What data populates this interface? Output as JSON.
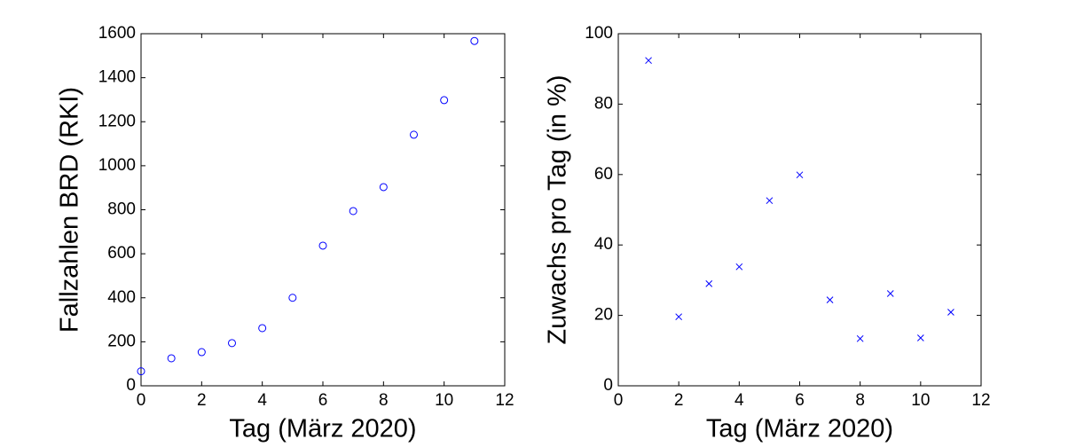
{
  "chart_data": [
    {
      "type": "scatter",
      "marker": "circle",
      "color": "#0000ff",
      "xlabel": "Tag (März 2020)",
      "ylabel": "Fallzahlen BRD (RKI)",
      "x": [
        0,
        1,
        2,
        3,
        4,
        5,
        6,
        7,
        8,
        9,
        10,
        11
      ],
      "values": [
        66,
        125,
        153,
        194,
        262,
        400,
        637,
        794,
        903,
        1141,
        1298,
        1567
      ],
      "xlim": [
        0,
        12
      ],
      "ylim": [
        0,
        1600
      ],
      "xticks": [
        0,
        2,
        4,
        6,
        8,
        10,
        12
      ],
      "yticks": [
        0,
        200,
        400,
        600,
        800,
        1000,
        1200,
        1400,
        1600
      ]
    },
    {
      "type": "scatter",
      "marker": "cross",
      "color": "#0000ff",
      "xlabel": "Tag (März 2020)",
      "ylabel": "Zuwachs pro Tag (in %)",
      "x": [
        1,
        2,
        3,
        4,
        5,
        6,
        7,
        8,
        9,
        10,
        11
      ],
      "values": [
        92.4,
        19.6,
        29.0,
        33.8,
        52.6,
        59.9,
        24.4,
        13.4,
        26.2,
        13.6,
        20.9
      ],
      "xlim": [
        0,
        12
      ],
      "ylim": [
        0,
        100
      ],
      "xticks": [
        0,
        2,
        4,
        6,
        8,
        10,
        12
      ],
      "yticks": [
        0,
        20,
        40,
        60,
        80,
        100
      ]
    }
  ]
}
